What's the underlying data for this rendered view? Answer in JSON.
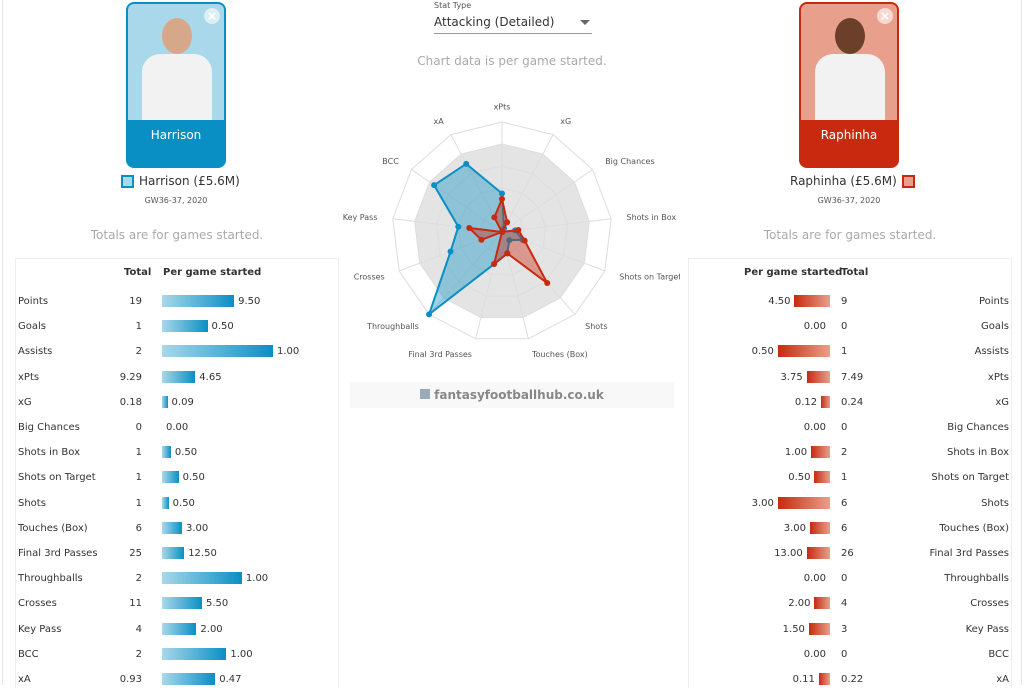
{
  "stat_type": {
    "label": "Stat Type",
    "value": "Attacking (Detailed)"
  },
  "chart_note": "Chart data is per game started.",
  "brand": "fantasyfootballhub.co.uk",
  "colors": {
    "left": "#0a8fc4",
    "right": "#c8290f",
    "left_bg": "#a8d8ea",
    "right_bg": "#e8a08c"
  },
  "left": {
    "card_name": "Harrison",
    "label": "Harrison (£5.6M)",
    "period": "GW36-37, 2020",
    "note": "Totals are for games started.",
    "col_total": "Total",
    "col_per": "Per game started"
  },
  "right": {
    "card_name": "Raphinha",
    "label": "Raphinha (£5.6M)",
    "period": "GW36-37, 2020",
    "note": "Totals are for games started.",
    "col_total": "Total",
    "col_per": "Per game started"
  },
  "stats": [
    {
      "name": "Points",
      "l_total": "19",
      "l_per": "9.50",
      "l_bar": 65,
      "r_total": "9",
      "r_per": "4.50",
      "r_bar": 32
    },
    {
      "name": "Goals",
      "l_total": "1",
      "l_per": "0.50",
      "l_bar": 41,
      "r_total": "0",
      "r_per": "0.00",
      "r_bar": 0
    },
    {
      "name": "Assists",
      "l_total": "2",
      "l_per": "1.00",
      "l_bar": 100,
      "r_total": "1",
      "r_per": "0.50",
      "r_bar": 47
    },
    {
      "name": "xPts",
      "l_total": "9.29",
      "l_per": "4.65",
      "l_bar": 30,
      "r_total": "7.49",
      "r_per": "3.75",
      "r_bar": 21
    },
    {
      "name": "xG",
      "l_total": "0.18",
      "l_per": "0.09",
      "l_bar": 5,
      "r_total": "0.24",
      "r_per": "0.12",
      "r_bar": 8
    },
    {
      "name": "Big Chances",
      "l_total": "0",
      "l_per": "0.00",
      "l_bar": 0,
      "r_total": "0",
      "r_per": "0.00",
      "r_bar": 0
    },
    {
      "name": "Shots in Box",
      "l_total": "1",
      "l_per": "0.50",
      "l_bar": 8,
      "r_total": "2",
      "r_per": "1.00",
      "r_bar": 17
    },
    {
      "name": "Shots on Target",
      "l_total": "1",
      "l_per": "0.50",
      "l_bar": 15,
      "r_total": "1",
      "r_per": "0.50",
      "r_bar": 14
    },
    {
      "name": "Shots",
      "l_total": "1",
      "l_per": "0.50",
      "l_bar": 6,
      "r_total": "6",
      "r_per": "3.00",
      "r_bar": 47
    },
    {
      "name": "Touches (Box)",
      "l_total": "6",
      "l_per": "3.00",
      "l_bar": 18,
      "r_total": "6",
      "r_per": "3.00",
      "r_bar": 18
    },
    {
      "name": "Final 3rd Passes",
      "l_total": "25",
      "l_per": "12.50",
      "l_bar": 20,
      "r_total": "26",
      "r_per": "13.00",
      "r_bar": 21
    },
    {
      "name": "Throughballs",
      "l_total": "2",
      "l_per": "1.00",
      "l_bar": 72,
      "r_total": "0",
      "r_per": "0.00",
      "r_bar": 0
    },
    {
      "name": "Crosses",
      "l_total": "11",
      "l_per": "5.50",
      "l_bar": 36,
      "r_total": "4",
      "r_per": "2.00",
      "r_bar": 14
    },
    {
      "name": "Key Pass",
      "l_total": "4",
      "l_per": "2.00",
      "l_bar": 31,
      "r_total": "3",
      "r_per": "1.50",
      "r_bar": 19
    },
    {
      "name": "BCC",
      "l_total": "2",
      "l_per": "1.00",
      "l_bar": 58,
      "r_total": "0",
      "r_per": "0.00",
      "r_bar": 0
    },
    {
      "name": "xA",
      "l_total": "0.93",
      "l_per": "0.47",
      "l_bar": 48,
      "r_total": "0.22",
      "r_per": "0.11",
      "r_bar": 10
    }
  ],
  "chart_data": {
    "type": "radar",
    "axes": [
      "xPts",
      "xG",
      "Big Chances",
      "Shots in Box",
      "Shots on Target",
      "Shots",
      "Touches (Box)",
      "Final 3rd Passes",
      "Throughballs",
      "Crosses",
      "Key Pass",
      "BCC",
      "xA"
    ],
    "range": [
      0,
      1
    ],
    "series": [
      {
        "name": "Harrison",
        "color": "#0a8fc4",
        "values": [
          0.35,
          0.04,
          0,
          0.12,
          0.2,
          0.1,
          0.2,
          0.3,
          1.0,
          0.5,
          0.4,
          0.75,
          0.7
        ]
      },
      {
        "name": "Raphinha",
        "color": "#c8290f",
        "values": [
          0.3,
          0.1,
          0,
          0.15,
          0.22,
          0.62,
          0.2,
          0.3,
          0,
          0.2,
          0.3,
          0,
          0.15
        ]
      }
    ]
  }
}
